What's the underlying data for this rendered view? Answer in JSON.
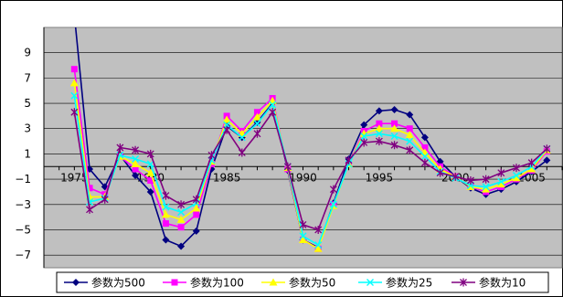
{
  "chart_data": {
    "type": "line",
    "title": "",
    "xlabel": "",
    "ylabel": "",
    "xlim": [
      1973,
      2007
    ],
    "ylim": [
      -8,
      11
    ],
    "x_ticks": [
      1975,
      1980,
      1985,
      1990,
      1995,
      2000,
      2005
    ],
    "x_tick_labels": [
      "1975",
      "1980",
      "1985",
      "1990",
      "1995",
      "2000",
      "2005"
    ],
    "y_ticks": [
      9,
      7,
      5,
      3,
      1,
      -1,
      -3,
      -5,
      -7
    ],
    "y_tick_labels": [
      "9",
      "7",
      "5",
      "3",
      "1",
      "−1",
      "−3",
      "−5",
      "−7"
    ],
    "plot_area_background": "#c0c0c0",
    "grid": true,
    "legend_position": "bottom",
    "x": [
      1975,
      1976,
      1977,
      1978,
      1979,
      1980,
      1981,
      1982,
      1983,
      1984,
      1985,
      1986,
      1987,
      1988,
      1989,
      1990,
      1991,
      1992,
      1993,
      1994,
      1995,
      1996,
      1997,
      1998,
      1999,
      2000,
      2001,
      2002,
      2003,
      2004,
      2005,
      2006
    ],
    "series": [
      {
        "name": "参数为500",
        "color": "#000080",
        "marker": "diamond",
        "values": [
          12.0,
          -0.2,
          -1.6,
          0.9,
          -0.7,
          -2.0,
          -5.8,
          -6.3,
          -5.1,
          -0.2,
          3.2,
          2.3,
          3.5,
          5.0,
          -0.3,
          -5.8,
          -6.4,
          -2.9,
          0.6,
          3.3,
          4.4,
          4.5,
          4.1,
          2.3,
          0.4,
          -0.8,
          -1.7,
          -2.2,
          -1.8,
          -1.2,
          -0.4,
          0.5
        ]
      },
      {
        "name": "参数为100",
        "color": "#ff00ff",
        "marker": "square",
        "values": [
          7.7,
          -1.7,
          -2.2,
          0.8,
          -0.2,
          -1.1,
          -4.5,
          -4.8,
          -3.8,
          0.2,
          4.0,
          2.8,
          4.3,
          5.4,
          -0.2,
          -5.8,
          -6.5,
          -3.0,
          0.2,
          2.8,
          3.4,
          3.4,
          3.0,
          1.5,
          0.0,
          -0.8,
          -1.6,
          -2.0,
          -1.6,
          -1.0,
          -0.3,
          1.2
        ]
      },
      {
        "name": "参数为50",
        "color": "#ffff00",
        "marker": "triangle",
        "values": [
          6.6,
          -2.4,
          -2.4,
          0.8,
          0.2,
          -0.5,
          -3.8,
          -4.2,
          -3.3,
          0.4,
          3.7,
          2.6,
          3.9,
          5.2,
          -0.1,
          -5.8,
          -6.5,
          -3.1,
          0.2,
          2.6,
          3.0,
          3.0,
          2.5,
          1.1,
          -0.2,
          -0.8,
          -1.6,
          -1.8,
          -1.4,
          -0.9,
          -0.2,
          1.3
        ]
      },
      {
        "name": "参数为25",
        "color": "#00ffff",
        "marker": "x",
        "values": [
          5.6,
          -2.8,
          -2.5,
          0.9,
          0.6,
          0.2,
          -3.2,
          -3.6,
          -2.9,
          0.5,
          3.3,
          2.3,
          3.4,
          4.9,
          0.0,
          -5.5,
          -6.2,
          -3.0,
          0.2,
          2.4,
          2.6,
          2.4,
          2.0,
          0.8,
          -0.4,
          -0.9,
          -1.5,
          -1.6,
          -1.2,
          -0.7,
          0.0,
          1.4
        ]
      },
      {
        "name": "参数为10",
        "color": "#800080",
        "marker": "star",
        "values": [
          4.3,
          -3.4,
          -2.6,
          1.5,
          1.3,
          1.0,
          -2.3,
          -3.0,
          -2.6,
          0.9,
          2.9,
          1.1,
          2.6,
          4.3,
          0.0,
          -4.6,
          -5.0,
          -1.8,
          0.5,
          1.9,
          2.0,
          1.7,
          1.3,
          0.3,
          -0.5,
          -0.8,
          -1.1,
          -1.0,
          -0.5,
          -0.1,
          0.3,
          1.4
        ]
      }
    ]
  }
}
